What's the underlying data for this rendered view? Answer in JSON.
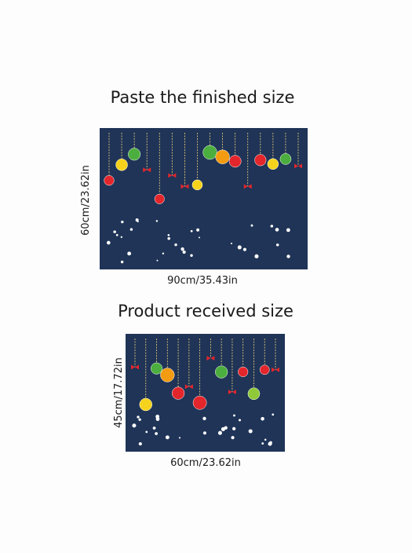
{
  "finished": {
    "title": "Paste the finished size",
    "height_label": "60cm/23.62in",
    "width_label": "90cm/35.43in"
  },
  "received": {
    "title": "Product received size",
    "height_label": "45cm/17.72in",
    "width_label": "60cm/23.62in"
  }
}
